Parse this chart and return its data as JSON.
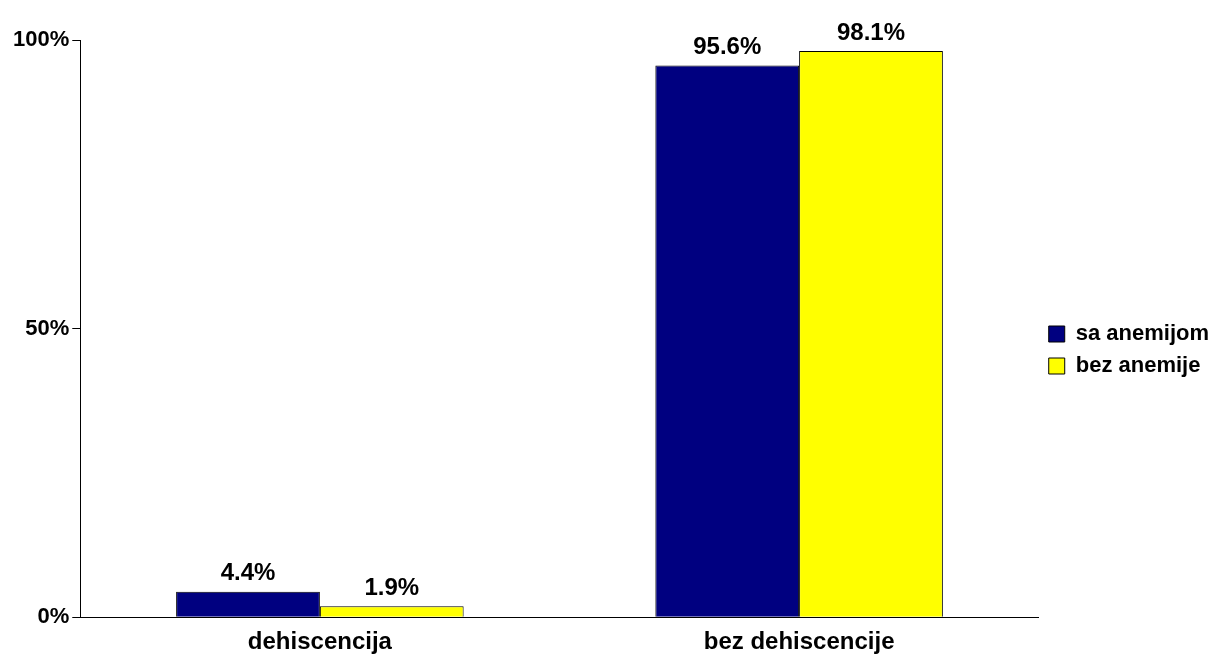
{
  "chart_data": {
    "type": "bar",
    "categories": [
      "dehiscencija",
      "bez dehiscencije"
    ],
    "series": [
      {
        "name": "sa anemijom",
        "color": "#000080",
        "values": [
          4.4,
          95.6
        ],
        "value_labels": [
          "4.4%",
          "95.6%"
        ]
      },
      {
        "name": "bez anemije",
        "color": "#ffff00",
        "values": [
          1.9,
          98.1
        ],
        "value_labels": [
          "1.9%",
          "98.1%"
        ]
      }
    ],
    "ylim": [
      0,
      100
    ],
    "yticks": [
      {
        "value": 0,
        "label": "0%"
      },
      {
        "value": 50,
        "label": "50%"
      },
      {
        "value": 100,
        "label": "100%"
      }
    ],
    "grid": false,
    "legend": "right"
  }
}
